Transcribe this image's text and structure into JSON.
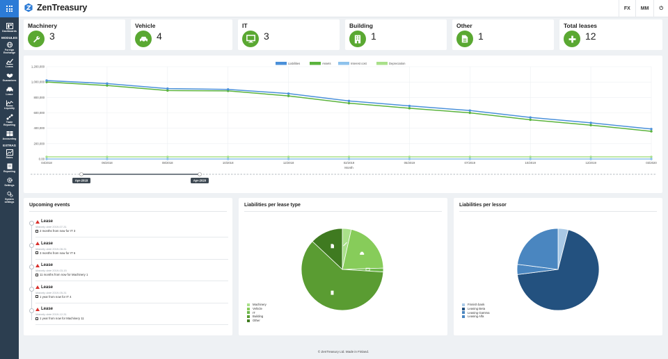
{
  "app": {
    "brand": "ZenTreasury",
    "topnav": [
      "FX",
      "MM",
      "⏻"
    ]
  },
  "sidebar": {
    "items": [
      {
        "label": "Dashboards",
        "icon": "dashboard-icon"
      },
      {
        "section": "MODULES"
      },
      {
        "label": "Foreign Exchange",
        "icon": "globe-icon"
      },
      {
        "label": "Loans",
        "icon": "loans-icon"
      },
      {
        "label": "Guarantees",
        "icon": "handshake-icon"
      },
      {
        "label": "Lease",
        "icon": "car-icon"
      },
      {
        "label": "Liquidity",
        "icon": "liquidity-icon"
      },
      {
        "label": "Trade Reporting",
        "icon": "trade-icon"
      },
      {
        "label": "Accounting",
        "icon": "accounting-icon"
      },
      {
        "section": "EXTRAS"
      },
      {
        "label": "Rates",
        "icon": "rates-icon"
      },
      {
        "label": "Reporting",
        "icon": "reporting-icon"
      },
      {
        "label": "Settings",
        "icon": "gear-icon"
      },
      {
        "label": "System settings",
        "icon": "system-gear-icon"
      }
    ]
  },
  "stats": [
    {
      "title": "Machinery",
      "value": "3",
      "icon": "wrench-icon"
    },
    {
      "title": "Vehicle",
      "value": "4",
      "icon": "car-icon"
    },
    {
      "title": "IT",
      "value": "3",
      "icon": "monitor-icon"
    },
    {
      "title": "Building",
      "value": "1",
      "icon": "building-icon"
    },
    {
      "title": "Other",
      "value": "1",
      "icon": "document-icon"
    },
    {
      "title": "Total leases",
      "value": "12",
      "icon": "plus-icon"
    }
  ],
  "colors": {
    "accent": "#2c7bd6",
    "sidebar": "#2c3e50",
    "green": "#5aa832",
    "liabilities": "#4a90d9",
    "assets": "#5ab33c",
    "interest": "#8ec2ec",
    "depreciation": "#a9e08a"
  },
  "chart_data": [
    {
      "type": "line",
      "title": "",
      "xlabel": "Month",
      "ylabel": "",
      "x": [
        "04/2018",
        "06/2018",
        "08/2018",
        "10/2018",
        "12/2018",
        "02/2019",
        "05/2019",
        "07/2019",
        "10/2019",
        "12/2019",
        "03/2020"
      ],
      "ylim": [
        0,
        1200000
      ],
      "yticks": [
        "0.00",
        "200,000",
        "400,000",
        "600,000",
        "800,000",
        "1,000,000",
        "1,200,000"
      ],
      "legend_position": "top-center",
      "grid": true,
      "series": [
        {
          "name": "Liabilities",
          "color": "#4a90d9",
          "values": [
            1020000,
            980000,
            915000,
            905000,
            850000,
            755000,
            690000,
            630000,
            540000,
            470000,
            390000
          ]
        },
        {
          "name": "Assets",
          "color": "#5ab33c",
          "values": [
            1000000,
            955000,
            890000,
            885000,
            820000,
            725000,
            660000,
            600000,
            510000,
            440000,
            360000
          ]
        },
        {
          "name": "Interest cost",
          "color": "#8ec2ec",
          "values": [
            0,
            0,
            0,
            0,
            0,
            0,
            0,
            0,
            0,
            0,
            0
          ]
        },
        {
          "name": "Depreciation",
          "color": "#a9e08a",
          "values": [
            28000,
            28000,
            28000,
            28000,
            28000,
            28000,
            28000,
            28000,
            28000,
            28000,
            28000
          ]
        }
      ],
      "range_slider": {
        "start": "Apr-2018",
        "end": "Apr-2020"
      }
    },
    {
      "type": "pie",
      "title": "Liabilities per lease type",
      "labels": [
        "Machinery",
        "Vehicle",
        "IT",
        "Building",
        "Other"
      ],
      "icons": [
        "wrench-icon",
        "car-icon",
        "monitor-icon",
        "building-icon",
        "document-icon"
      ],
      "values": [
        3.5,
        21,
        1.5,
        61,
        13
      ],
      "colors": [
        "#a9e08a",
        "#87cc5a",
        "#6db84a",
        "#5a9c32",
        "#3f7a20"
      ]
    },
    {
      "type": "pie",
      "title": "Liabilities per lessor",
      "labels": [
        "Finnish bank",
        "Leasing Beta",
        "Leasing Gamma",
        "Leasing Alfa"
      ],
      "values": [
        4,
        69,
        4,
        23
      ],
      "colors": [
        "#a9c9e6",
        "#23517f",
        "#4a86c0",
        "#4a86c0"
      ]
    }
  ],
  "events": {
    "title": "Upcoming events",
    "items": [
      {
        "title": "Lease",
        "date_label": "Maturity date",
        "date": "2019-07-31",
        "desc": "2 months from now for IT 3"
      },
      {
        "title": "Lease",
        "date_label": "Maturity date",
        "date": "2019-08-31",
        "desc": "3 months from now for IT 6"
      },
      {
        "title": "Lease",
        "date_label": "Maturity date",
        "date": "2019-03-15",
        "desc": "11 months from now for Machinery 1"
      },
      {
        "title": "Lease",
        "date_label": "Maturity date",
        "date": "2019-05-31",
        "desc": "1 year from now for IT 4"
      },
      {
        "title": "Lease",
        "date_label": "Maturity date",
        "date": "2019-12-31",
        "desc": "1 year from now for Machinery 11"
      }
    ]
  },
  "footer": "© ZenTreasury Ltd. Made in Finland."
}
